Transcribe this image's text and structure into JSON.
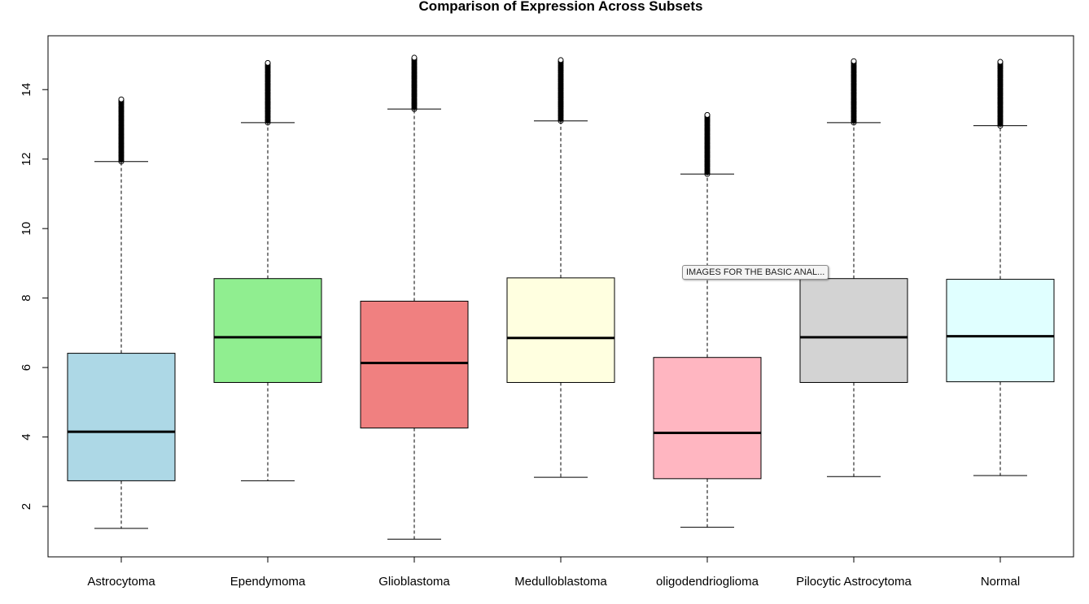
{
  "chart_data": {
    "type": "boxplot",
    "title": "Comparison of Expression Across Subsets",
    "xlabel": "",
    "ylabel": "",
    "ylim": [
      0.55,
      15.55
    ],
    "yticks": [
      "2",
      "4",
      "6",
      "8",
      "10",
      "12",
      "14"
    ],
    "grid": false,
    "categories": [
      "Astrocytoma",
      "Ependymoma",
      "Glioblastoma",
      "Medulloblastoma",
      "oligodendrioglioma",
      "Pilocytic Astrocytoma",
      "Normal"
    ],
    "boxes": [
      {
        "name": "Astrocytoma",
        "color": "#add8e6",
        "whisker_low": 1.37,
        "q1": 2.74,
        "median": 4.15,
        "q3": 6.41,
        "whisker_high": 11.93,
        "outlier_min": 11.93,
        "outlier_max": 13.72
      },
      {
        "name": "Ependymoma",
        "color": "#90ee90",
        "whisker_low": 2.74,
        "q1": 5.57,
        "median": 6.87,
        "q3": 8.56,
        "whisker_high": 13.05,
        "outlier_min": 13.05,
        "outlier_max": 14.77
      },
      {
        "name": "Glioblastoma",
        "color": "#f08080",
        "whisker_low": 1.06,
        "q1": 4.26,
        "median": 6.13,
        "q3": 7.91,
        "whisker_high": 13.44,
        "outlier_min": 13.44,
        "outlier_max": 14.92
      },
      {
        "name": "Medulloblastoma",
        "color": "#ffffe0",
        "whisker_low": 2.84,
        "q1": 5.57,
        "median": 6.85,
        "q3": 8.58,
        "whisker_high": 13.1,
        "outlier_min": 13.1,
        "outlier_max": 14.85
      },
      {
        "name": "oligodendrioglioma",
        "color": "#ffb6c1",
        "whisker_low": 1.4,
        "q1": 2.8,
        "median": 4.12,
        "q3": 6.29,
        "whisker_high": 11.57,
        "outlier_min": 11.57,
        "outlier_max": 13.27
      },
      {
        "name": "Pilocytic Astrocytoma",
        "color": "#d3d3d3",
        "whisker_low": 2.86,
        "q1": 5.57,
        "median": 6.87,
        "q3": 8.56,
        "whisker_high": 13.05,
        "outlier_min": 13.05,
        "outlier_max": 14.82
      },
      {
        "name": "Normal",
        "color": "#e0ffff",
        "whisker_low": 2.89,
        "q1": 5.59,
        "median": 6.9,
        "q3": 8.54,
        "whisker_high": 12.96,
        "outlier_min": 12.96,
        "outlier_max": 14.8
      }
    ]
  },
  "tooltip": {
    "text": "IMAGES FOR THE BASIC ANAL..."
  }
}
